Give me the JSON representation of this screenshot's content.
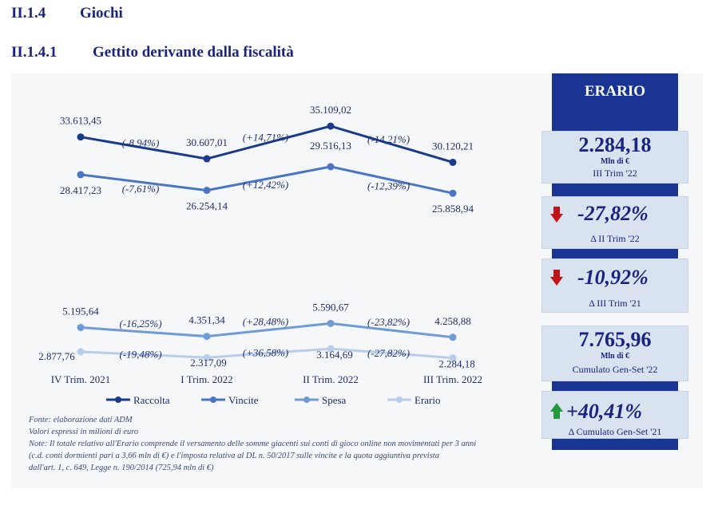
{
  "headings": {
    "h1_num": "II.1.4",
    "h1_title": "Giochi",
    "h2_num": "II.1.4.1",
    "h2_title": "Gettito derivante dalla fiscalità"
  },
  "chart_data": {
    "type": "line",
    "categories": [
      "IV Trim. 2021",
      "I Trim. 2022",
      "II Trim. 2022",
      "III Trim. 2022"
    ],
    "series": [
      {
        "name": "Raccolta",
        "values": [
          33613.45,
          30607.01,
          35109.02,
          30120.21
        ],
        "labels": [
          "33.613,45",
          "30.607,01",
          "35.109,02",
          "30.120,21"
        ],
        "changes": [
          "(-8,94%)",
          "(+14,71%)",
          "(-14,21%)"
        ],
        "color": "#1a3a8a"
      },
      {
        "name": "Vincite",
        "values": [
          28417.23,
          26254.14,
          29516.13,
          25858.94
        ],
        "labels": [
          "28.417,23",
          "26.254,14",
          "29.516,13",
          "25.858,94"
        ],
        "changes": [
          "(-7,61%)",
          "(+12,42%)",
          "(-12,39%)"
        ],
        "color": "#4a74c4"
      },
      {
        "name": "Spesa",
        "values": [
          5195.64,
          4351.34,
          5590.67,
          4258.88
        ],
        "labels": [
          "5.195,64",
          "4.351,34",
          "5.590,67",
          "4.258,88"
        ],
        "changes": [
          "(-16,25%)",
          "(+28,48%)",
          "(-23,82%)"
        ],
        "color": "#6f9bd6"
      },
      {
        "name": "Erario",
        "values": [
          2877.76,
          2317.09,
          3164.69,
          2284.18
        ],
        "labels": [
          "2.877,76",
          "2.317,09",
          "3.164,69",
          "2.284,18"
        ],
        "changes": [
          "(-19,48%)",
          "(+36,58%)",
          "(-27,82%)"
        ],
        "color": "#b8cdea"
      }
    ],
    "legend_position": "bottom",
    "grid": false
  },
  "notes": [
    "Fonte: elaborazione dati ADM",
    "Valori espressi in milioni di euro",
    "Note: Il totale relativo all'Erario comprende il versamento delle somme giacenti sui conti di gioco online non movimentati per 3 anni",
    "(c.d. conti dormienti pari a 3,66 mln di €) e l'imposta relativa al DL n. 50/2017 sulle vincite e la quota aggiuntiva prevista",
    "dall'art. 1, c. 649, Legge n. 190/2014 (725,94 mln di €)"
  ],
  "sidebar": {
    "title": "ERARIO",
    "kpi1": {
      "value": "2.284,18",
      "unit": "Mln di €",
      "caption": "III Trim '22"
    },
    "kpi2": {
      "value": "-27,82%",
      "caption": "Δ II Trim '22",
      "direction": "down",
      "arrow_color": "#c0141b"
    },
    "kpi3": {
      "value": "-10,92%",
      "caption": "Δ III Trim '21",
      "direction": "down",
      "arrow_color": "#c0141b"
    },
    "kpi4": {
      "value": "7.765,96",
      "unit": "Mln di €",
      "caption": "Cumulato Gen-Set '22"
    },
    "kpi5": {
      "value": "+40,41%",
      "caption": "Δ Cumulato Gen-Set '21",
      "direction": "up",
      "arrow_color": "#1f9a3c"
    }
  }
}
